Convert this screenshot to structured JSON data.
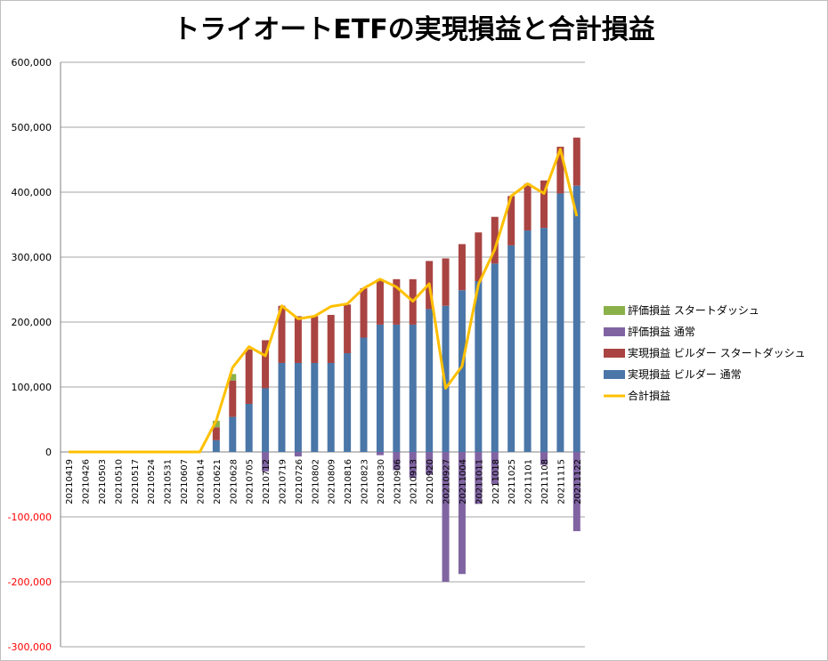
{
  "chart_data": {
    "type": "bar",
    "title": "トライオートETFの実現損益と合計損益",
    "categories": [
      "20210419",
      "20210426",
      "20210503",
      "20210510",
      "20210517",
      "20210524",
      "20210531",
      "20210607",
      "20210614",
      "20210621",
      "20210628",
      "20210705",
      "20210712",
      "20210719",
      "20210726",
      "20210802",
      "20210809",
      "20210816",
      "20210823",
      "20210830",
      "20210906",
      "20210913",
      "20210920",
      "20210927",
      "20211004",
      "20211011",
      "20211018",
      "20211025",
      "20211101",
      "20211108",
      "20211115",
      "20211122"
    ],
    "y_axis": {
      "min": -300000,
      "max": 600000,
      "ticks": [
        {
          "value": 600000,
          "label": "600,000",
          "color": "#000000"
        },
        {
          "value": 500000,
          "label": "500,000",
          "color": "#000000"
        },
        {
          "value": 400000,
          "label": "400,000",
          "color": "#000000"
        },
        {
          "value": 300000,
          "label": "300,000",
          "color": "#000000"
        },
        {
          "value": 200000,
          "label": "200,000",
          "color": "#000000"
        },
        {
          "value": 100000,
          "label": "100,000",
          "color": "#000000"
        },
        {
          "value": 0,
          "label": "0",
          "color": "#000000"
        },
        {
          "value": -100000,
          "label": "-100,000",
          "color": "#ff0000"
        },
        {
          "value": -200000,
          "label": "-200,000",
          "color": "#ff0000"
        },
        {
          "value": -300000,
          "label": "-300,000",
          "color": "#ff0000"
        }
      ]
    },
    "grid": true,
    "legend_position": "right",
    "series": [
      {
        "name": "実現損益 ビルダー 通常",
        "kind": "bar",
        "color": "#4a76a8",
        "values": [
          0,
          0,
          0,
          0,
          0,
          0,
          0,
          0,
          0,
          18000,
          54000,
          74000,
          98000,
          137000,
          137000,
          137000,
          137000,
          152000,
          176000,
          196000,
          196000,
          196000,
          220000,
          225000,
          249000,
          263000,
          290000,
          318000,
          341000,
          345000,
          398000,
          410000
        ]
      },
      {
        "name": "実現損益 ビルダー スタートダッシュ",
        "kind": "bar",
        "color": "#a94442",
        "values": [
          0,
          0,
          0,
          0,
          0,
          0,
          0,
          0,
          0,
          20000,
          56000,
          84000,
          74000,
          88000,
          72000,
          72000,
          74000,
          75000,
          76000,
          70000,
          70000,
          70000,
          74000,
          73000,
          71000,
          75000,
          72000,
          76000,
          72000,
          73000,
          72000,
          74000
        ]
      },
      {
        "name": "評価損益 スタートダッシュ",
        "kind": "bar",
        "color": "#8ab04a",
        "values": [
          0,
          0,
          0,
          0,
          0,
          0,
          0,
          0,
          0,
          10000,
          10000,
          0,
          0,
          0,
          0,
          0,
          0,
          0,
          0,
          0,
          0,
          0,
          0,
          0,
          0,
          0,
          0,
          0,
          0,
          0,
          0,
          0
        ]
      },
      {
        "name": "評価損益 通常",
        "kind": "bar",
        "color": "#8064a2",
        "values": [
          0,
          0,
          0,
          0,
          0,
          0,
          0,
          0,
          0,
          0,
          0,
          0,
          -30000,
          0,
          -7000,
          0,
          0,
          0,
          0,
          -5000,
          -28000,
          -40000,
          -35000,
          -200000,
          -188000,
          -80000,
          -50000,
          0,
          0,
          -20000,
          0,
          -122000
        ]
      },
      {
        "name": "合計損益",
        "kind": "line",
        "color": "#ffc000",
        "values": [
          0,
          0,
          0,
          0,
          0,
          0,
          0,
          0,
          0,
          48000,
          130000,
          162000,
          148000,
          225000,
          205000,
          209000,
          224000,
          228000,
          252000,
          266000,
          254000,
          232000,
          259000,
          98000,
          132000,
          258000,
          312000,
          394000,
          413000,
          398000,
          466000,
          363000
        ]
      }
    ]
  },
  "legend_order": [
    2,
    3,
    1,
    0,
    4
  ]
}
